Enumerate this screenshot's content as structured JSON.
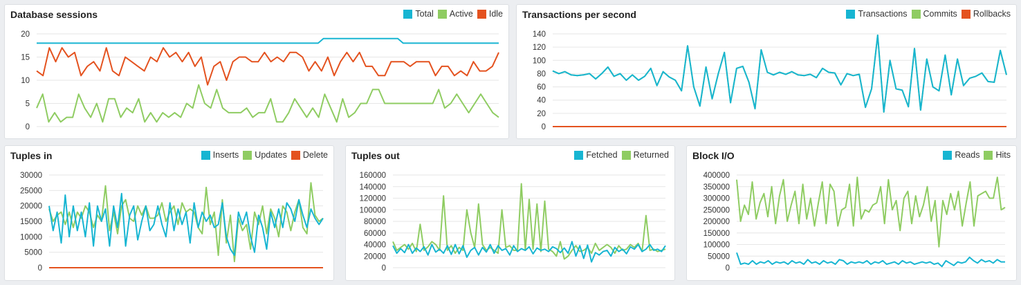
{
  "chart_data": [
    {
      "id": "sessions",
      "type": "line",
      "title": "Database sessions",
      "ylim": [
        0,
        20
      ],
      "yticks": [
        0,
        5,
        10,
        15,
        20
      ],
      "grid": true,
      "legend_position": "top-right",
      "series": [
        {
          "name": "Total",
          "color": "#17b5d2",
          "values": [
            18,
            18,
            18,
            18,
            18,
            18,
            18,
            18,
            18,
            18,
            18,
            18,
            18,
            18,
            18,
            18,
            18,
            18,
            18,
            18,
            18,
            18,
            18,
            18,
            18,
            18,
            18,
            18,
            18,
            18,
            18,
            18,
            18,
            18,
            18,
            18,
            18,
            18,
            18,
            18,
            18,
            18,
            18,
            18,
            18,
            18,
            18,
            18,
            18,
            18,
            18,
            18,
            18,
            18,
            19,
            19,
            19,
            19,
            19,
            19,
            19,
            19,
            19,
            19,
            19,
            19,
            19,
            19,
            19,
            18,
            18,
            18,
            18,
            18,
            18,
            18,
            18,
            18,
            18,
            18,
            18,
            18,
            18,
            18,
            18,
            18,
            18,
            18
          ]
        },
        {
          "name": "Active",
          "color": "#8fcc62",
          "values": [
            4,
            7,
            1,
            3,
            1,
            2,
            2,
            7,
            4,
            2,
            5,
            1,
            6,
            6,
            2,
            4,
            3,
            6,
            1,
            3,
            1,
            3,
            2,
            3,
            2,
            5,
            4,
            9,
            5,
            4,
            8,
            4,
            3,
            3,
            3,
            4,
            2,
            3,
            3,
            6,
            1,
            1,
            3,
            6,
            4,
            2,
            4,
            2,
            7,
            4,
            1,
            6,
            2,
            3,
            5,
            5,
            8,
            8,
            5,
            5,
            5,
            5,
            5,
            5,
            5,
            5,
            5,
            8,
            4,
            5,
            7,
            5,
            3,
            5,
            7,
            5,
            3,
            2
          ]
        },
        {
          "name": "Idle",
          "color": "#e4521f",
          "values": [
            12,
            11,
            17,
            14,
            17,
            15,
            16,
            11,
            13,
            14,
            12,
            17,
            12,
            11,
            15,
            14,
            13,
            12,
            15,
            14,
            17,
            15,
            16,
            14,
            16,
            13,
            15,
            9,
            13,
            14,
            10,
            14,
            15,
            15,
            14,
            14,
            16,
            14,
            15,
            14,
            16,
            16,
            15,
            12,
            14,
            12,
            15,
            11,
            14,
            16,
            14,
            16,
            13,
            13,
            11,
            11,
            14,
            14,
            14,
            13,
            14,
            14,
            14,
            11,
            13,
            13,
            11,
            12,
            11,
            14,
            12,
            12,
            13,
            16
          ]
        }
      ]
    },
    {
      "id": "tps",
      "type": "line",
      "title": "Transactions per second",
      "ylim": [
        0,
        140
      ],
      "yticks": [
        0,
        20,
        40,
        60,
        80,
        100,
        120,
        140
      ],
      "grid": true,
      "legend_position": "top-right",
      "series": [
        {
          "name": "Transactions",
          "color": "#17b5d2",
          "values": [
            84,
            80,
            83,
            78,
            77,
            78,
            80,
            72,
            80,
            90,
            76,
            80,
            70,
            78,
            70,
            76,
            88,
            62,
            83,
            75,
            70,
            54,
            122,
            60,
            31,
            90,
            42,
            80,
            112,
            36,
            88,
            91,
            67,
            27,
            116,
            82,
            78,
            82,
            79,
            83,
            78,
            77,
            79,
            74,
            88,
            82,
            81,
            63,
            80,
            77,
            79,
            29,
            57,
            138,
            22,
            100,
            57,
            55,
            30,
            118,
            25,
            102,
            60,
            54,
            108,
            48,
            102,
            62,
            73,
            76,
            81,
            68,
            67,
            115,
            78
          ]
        },
        {
          "name": "Commits",
          "color": "#8fcc62",
          "values": [
            84,
            80,
            83,
            78,
            77,
            78,
            80,
            72,
            80,
            90,
            76,
            80,
            70,
            78,
            70,
            76,
            88,
            62,
            83,
            75,
            70,
            54,
            122,
            60,
            31,
            90,
            42,
            80,
            112,
            36,
            88,
            91,
            67,
            27,
            116,
            82,
            78,
            82,
            79,
            83,
            78,
            77,
            79,
            74,
            88,
            82,
            81,
            63,
            80,
            77,
            79,
            29,
            57,
            138,
            22,
            100,
            57,
            55,
            30,
            118,
            25,
            102,
            60,
            54,
            108,
            48,
            102,
            62,
            73,
            76,
            81,
            68,
            67,
            115,
            78
          ]
        },
        {
          "name": "Rollbacks",
          "color": "#e4521f",
          "values": [
            0,
            0,
            0,
            0,
            0,
            0,
            0,
            0,
            0,
            0,
            0,
            0,
            0,
            0,
            0,
            0,
            0,
            0,
            0,
            0,
            0,
            0,
            0,
            0,
            0,
            0,
            0,
            0,
            0,
            0,
            0,
            0,
            0,
            0,
            0,
            0,
            0,
            0,
            0,
            0,
            0,
            0,
            0,
            0,
            0,
            0,
            0,
            0,
            0,
            0,
            0,
            0,
            0,
            0,
            0,
            0,
            0,
            0,
            0,
            0,
            0,
            0,
            0,
            0,
            0,
            0,
            0,
            0,
            0,
            0,
            0,
            0,
            0,
            0,
            0
          ]
        }
      ]
    },
    {
      "id": "tuples_in",
      "type": "line",
      "title": "Tuples in",
      "ylim": [
        0,
        30000
      ],
      "yticks": [
        0,
        5000,
        10000,
        15000,
        20000,
        25000,
        30000
      ],
      "grid": true,
      "legend_position": "top-right",
      "series": [
        {
          "name": "Inserts",
          "color": "#17b5d2",
          "values": [
            20000,
            12000,
            18000,
            8000,
            23500,
            10000,
            20000,
            12000,
            18000,
            10000,
            21000,
            7000,
            20000,
            15000,
            19000,
            7000,
            20000,
            13000,
            24000,
            7000,
            17000,
            20000,
            9000,
            15000,
            20000,
            12000,
            14000,
            20000,
            14000,
            10000,
            21000,
            12000,
            19000,
            14000,
            18000,
            8000,
            21000,
            13000,
            18000,
            15000,
            17000,
            13000,
            14000,
            21000,
            10000,
            6000,
            4000,
            18000,
            14000,
            18000,
            10000,
            5000,
            17000,
            13000,
            6000,
            18000,
            13000,
            19000,
            13000,
            21000,
            19000,
            15000,
            22000,
            17000,
            13000,
            19000,
            16000,
            14000,
            16000
          ]
        },
        {
          "name": "Updates",
          "color": "#8fcc62",
          "values": [
            19000,
            15000,
            17000,
            18000,
            14000,
            18000,
            13000,
            18000,
            16000,
            20000,
            18000,
            13000,
            17000,
            15000,
            26500,
            12000,
            18000,
            11000,
            20000,
            22000,
            16000,
            15000,
            20000,
            17000,
            20000,
            16000,
            16000,
            17000,
            21000,
            15000,
            18000,
            20000,
            14000,
            21000,
            18000,
            19000,
            18000,
            13000,
            11000,
            26000,
            14000,
            18000,
            4000,
            22000,
            8000,
            17000,
            2000,
            16000,
            12000,
            14000,
            6000,
            18000,
            14000,
            20000,
            11000,
            19000,
            16000,
            10000,
            20000,
            18000,
            12000,
            18000,
            22000,
            13000,
            11000,
            27500,
            17000,
            15000,
            16000
          ]
        },
        {
          "name": "Delete",
          "color": "#e4521f",
          "values": [
            0,
            0,
            0,
            0,
            0,
            0,
            0,
            0,
            0,
            0,
            0,
            0,
            0,
            0,
            0,
            0,
            0,
            0,
            0,
            0,
            0,
            0,
            0,
            0,
            0,
            0,
            0,
            0,
            0,
            0,
            0,
            0,
            0,
            0,
            0,
            0,
            0,
            0,
            0,
            0,
            0,
            0,
            0,
            0,
            0,
            0,
            0,
            0,
            0,
            0,
            0,
            0,
            0,
            0,
            0,
            0,
            0,
            0,
            0,
            0,
            0,
            0,
            0,
            0,
            0,
            0,
            0,
            0,
            0
          ]
        }
      ]
    },
    {
      "id": "tuples_out",
      "type": "line",
      "title": "Tuples out",
      "ylim": [
        0,
        160000
      ],
      "yticks": [
        0,
        20000,
        40000,
        60000,
        80000,
        100000,
        120000,
        140000,
        160000
      ],
      "grid": true,
      "legend_position": "top-right",
      "series": [
        {
          "name": "Fetched",
          "color": "#17b5d2",
          "values": [
            38000,
            25000,
            33000,
            26000,
            40000,
            25000,
            34000,
            28000,
            36000,
            22000,
            40000,
            27000,
            32000,
            25000,
            38000,
            23000,
            40000,
            24000,
            38000,
            18000,
            30000,
            35000,
            22000,
            35000,
            27000,
            40000,
            25000,
            38000,
            30000,
            33000,
            22000,
            38000,
            28000,
            33000,
            30000,
            36000,
            24000,
            34000,
            30000,
            32000,
            28000,
            36000,
            33000,
            26000,
            34000,
            25000,
            45000,
            20000,
            38000,
            16000,
            39000,
            10000,
            26000,
            22000,
            28000,
            30000,
            20000,
            35000,
            28000,
            32000,
            24000,
            36000,
            32000,
            40000,
            28000,
            32000,
            40000,
            30000,
            32000,
            28000,
            38000
          ]
        },
        {
          "name": "Returned",
          "color": "#8fcc62",
          "values": [
            45000,
            30000,
            35000,
            40000,
            32000,
            42000,
            28000,
            75000,
            30000,
            36000,
            45000,
            40000,
            30000,
            124000,
            30000,
            38000,
            25000,
            35000,
            30000,
            100000,
            60000,
            35000,
            110000,
            40000,
            30000,
            35000,
            30000,
            25000,
            100000,
            35000,
            38000,
            30000,
            30000,
            145000,
            30000,
            118000,
            32000,
            110000,
            28000,
            115000,
            32000,
            28000,
            20000,
            45000,
            15000,
            20000,
            30000,
            38000,
            28000,
            30000,
            35000,
            25000,
            42000,
            30000,
            35000,
            40000,
            35000,
            25000,
            38000,
            30000,
            32000,
            40000,
            35000,
            42000,
            28000,
            90000,
            30000,
            32000,
            28000,
            30000,
            32000
          ]
        }
      ]
    },
    {
      "id": "block_io",
      "type": "line",
      "title": "Block I/O",
      "ylim": [
        0,
        400000
      ],
      "yticks": [
        0,
        50000,
        100000,
        150000,
        200000,
        250000,
        300000,
        350000,
        400000
      ],
      "grid": true,
      "legend_position": "top-right",
      "series": [
        {
          "name": "Reads",
          "color": "#17b5d2",
          "values": [
            65000,
            15000,
            20000,
            15000,
            30000,
            15000,
            25000,
            20000,
            30000,
            15000,
            25000,
            20000,
            25000,
            15000,
            30000,
            20000,
            25000,
            15000,
            35000,
            20000,
            25000,
            15000,
            30000,
            20000,
            25000,
            15000,
            35000,
            30000,
            15000,
            25000,
            20000,
            25000,
            20000,
            30000,
            15000,
            25000,
            20000,
            30000,
            15000,
            20000,
            25000,
            15000,
            30000,
            20000,
            25000,
            15000,
            20000,
            25000,
            20000,
            25000,
            15000,
            20000,
            5000,
            30000,
            20000,
            10000,
            25000,
            20000,
            25000,
            45000,
            30000,
            20000,
            35000,
            25000,
            30000,
            20000,
            35000,
            25000,
            25000
          ]
        },
        {
          "name": "Hits",
          "color": "#8fcc62",
          "values": [
            380000,
            200000,
            270000,
            230000,
            370000,
            210000,
            280000,
            320000,
            220000,
            350000,
            190000,
            310000,
            380000,
            200000,
            270000,
            330000,
            190000,
            360000,
            210000,
            300000,
            180000,
            280000,
            370000,
            190000,
            360000,
            330000,
            180000,
            250000,
            260000,
            360000,
            180000,
            390000,
            210000,
            250000,
            240000,
            270000,
            280000,
            350000,
            190000,
            380000,
            250000,
            290000,
            160000,
            300000,
            330000,
            190000,
            310000,
            220000,
            270000,
            350000,
            200000,
            290000,
            90000,
            290000,
            230000,
            320000,
            250000,
            330000,
            180000,
            280000,
            370000,
            180000,
            310000,
            320000,
            330000,
            300000,
            300000,
            390000,
            250000,
            260000
          ]
        }
      ]
    }
  ]
}
